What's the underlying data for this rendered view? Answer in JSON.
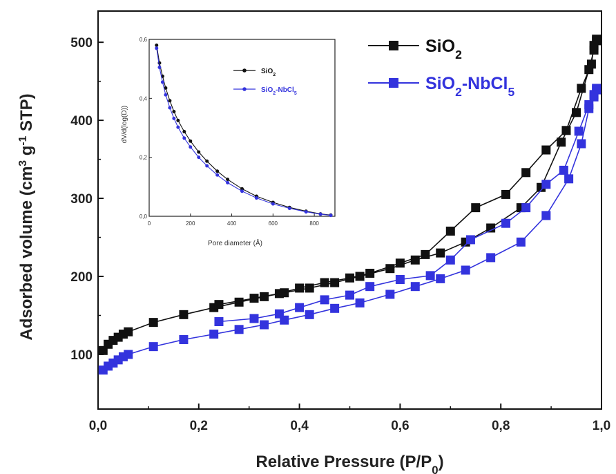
{
  "chart_data": [
    {
      "type": "line",
      "xlabel": "Relative Pressure (P/P0)",
      "ylabel": "Adsorbed volume (cm3 g-1 STP)",
      "xlim": [
        0.0,
        1.0
      ],
      "ylim": [
        30,
        540
      ],
      "x_ticks": [
        "0,0",
        "0,2",
        "0,4",
        "0,6",
        "0,8",
        "1,0"
      ],
      "y_ticks": [
        "100",
        "200",
        "300",
        "400",
        "500"
      ],
      "legend_position": "top-right",
      "series": [
        {
          "name": "SiO2",
          "color": "#111111",
          "marker": "square",
          "adsorption": {
            "x": [
              0.01,
              0.02,
              0.03,
              0.04,
              0.05,
              0.06,
              0.11,
              0.17,
              0.23,
              0.28,
              0.33,
              0.37,
              0.42,
              0.47,
              0.52,
              0.58,
              0.63,
              0.68,
              0.73,
              0.78,
              0.84,
              0.88,
              0.92,
              0.95,
              0.975,
              0.985,
              0.99
            ],
            "y": [
              105,
              113,
              118,
              122,
              126,
              129,
              141,
              151,
              160,
              167,
              174,
              179,
              185,
              192,
              200,
              210,
              221,
              230,
              244,
              262,
              288,
              314,
              372,
              410,
              465,
              490,
              502
            ]
          },
          "desorption": {
            "x": [
              0.99,
              0.985,
              0.98,
              0.96,
              0.93,
              0.89,
              0.85,
              0.81,
              0.75,
              0.7,
              0.65,
              0.6,
              0.54,
              0.5,
              0.45,
              0.4,
              0.36,
              0.31,
              0.24
            ],
            "y": [
              504,
              496,
              472,
              441,
              387,
              362,
              333,
              305,
              288,
              258,
              228,
              217,
              204,
              198,
              192,
              185,
              178,
              172,
              164
            ]
          }
        },
        {
          "name": "SiO2-NbCl5",
          "color": "#3333dd",
          "marker": "square",
          "adsorption": {
            "x": [
              0.01,
              0.02,
              0.03,
              0.04,
              0.05,
              0.06,
              0.11,
              0.17,
              0.23,
              0.28,
              0.33,
              0.37,
              0.42,
              0.47,
              0.52,
              0.58,
              0.63,
              0.68,
              0.73,
              0.78,
              0.84,
              0.89,
              0.935,
              0.96,
              0.975,
              0.985,
              0.99
            ],
            "y": [
              80,
              85,
              89,
              93,
              97,
              100,
              110,
              119,
              126,
              132,
              138,
              144,
              151,
              159,
              166,
              177,
              187,
              197,
              208,
              224,
              244,
              278,
              325,
              370,
              415,
              430,
              439
            ]
          },
          "desorption": {
            "x": [
              0.99,
              0.985,
              0.975,
              0.955,
              0.925,
              0.89,
              0.85,
              0.81,
              0.74,
              0.7,
              0.66,
              0.6,
              0.54,
              0.5,
              0.45,
              0.4,
              0.36,
              0.31,
              0.24
            ],
            "y": [
              441,
              433,
              420,
              386,
              336,
              318,
              288,
              268,
              247,
              221,
              201,
              196,
              187,
              176,
              170,
              160,
              152,
              146,
              142
            ]
          }
        }
      ]
    },
    {
      "type": "line",
      "xlabel": "Pore diameter (Å)",
      "ylabel": "dV/d(log(D))",
      "xlim": [
        0,
        900
      ],
      "ylim": [
        0,
        0.6
      ],
      "x_ticks": [
        "0",
        "200",
        "400",
        "600",
        "800"
      ],
      "y_ticks": [
        "0,0",
        "0,2",
        "0,4",
        "0,6"
      ],
      "legend_position": "top-right",
      "series": [
        {
          "name": "SiO2",
          "color": "#111111",
          "marker": "circle",
          "x": [
            36,
            50,
            65,
            80,
            100,
            120,
            140,
            170,
            200,
            240,
            280,
            330,
            380,
            450,
            520,
            600,
            680,
            760,
            830,
            880
          ],
          "y": [
            0.58,
            0.52,
            0.475,
            0.435,
            0.392,
            0.355,
            0.325,
            0.287,
            0.255,
            0.218,
            0.187,
            0.153,
            0.125,
            0.093,
            0.068,
            0.047,
            0.03,
            0.017,
            0.008,
            0.004
          ]
        },
        {
          "name": "SiO2-NbCl5",
          "color": "#3333dd",
          "marker": "circle",
          "x": [
            36,
            50,
            65,
            80,
            100,
            120,
            140,
            170,
            200,
            240,
            280,
            330,
            380,
            450,
            520,
            600,
            680,
            760,
            830,
            880
          ],
          "y": [
            0.57,
            0.505,
            0.455,
            0.412,
            0.368,
            0.332,
            0.302,
            0.265,
            0.235,
            0.2,
            0.171,
            0.14,
            0.114,
            0.085,
            0.062,
            0.042,
            0.027,
            0.015,
            0.007,
            0.003
          ]
        }
      ]
    }
  ]
}
